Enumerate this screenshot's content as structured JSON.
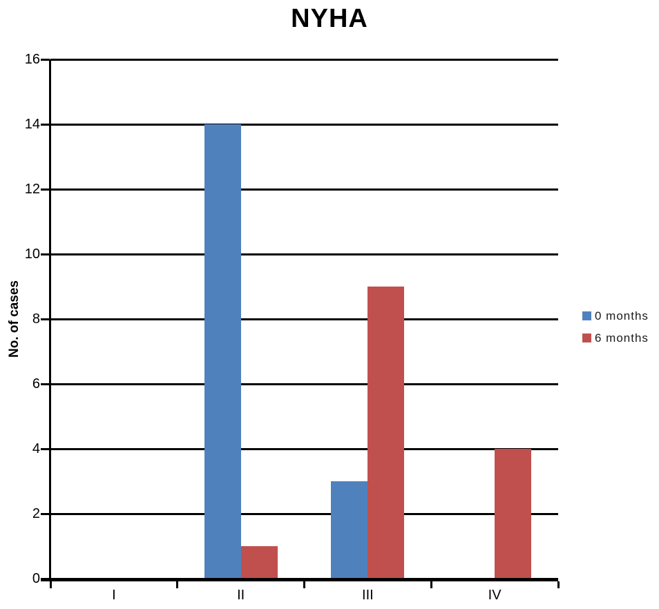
{
  "chart_data": {
    "type": "bar",
    "title": "NYHA",
    "xlabel": "",
    "ylabel": "No. of cases",
    "categories": [
      "I",
      "II",
      "III",
      "IV"
    ],
    "series": [
      {
        "name": "0 months",
        "color": "#4F81BD",
        "values": [
          0,
          14,
          3,
          0
        ]
      },
      {
        "name": "6 months",
        "color": "#C0504D",
        "values": [
          0,
          1,
          9,
          4
        ]
      }
    ],
    "ylim": [
      0,
      16
    ],
    "ytick_step": 2,
    "grid": true,
    "gridline_color": "#000000",
    "axis_color": "#000000",
    "legend_position": "right"
  }
}
